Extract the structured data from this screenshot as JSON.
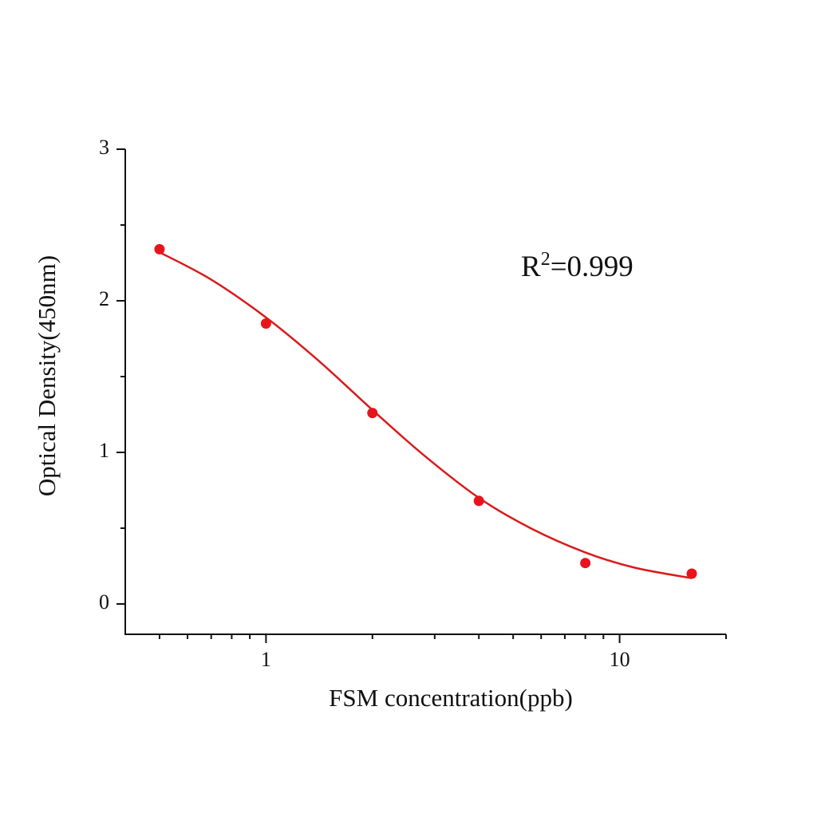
{
  "chart_data": {
    "type": "scatter",
    "x_label": "FSM concentration(ppb)",
    "y_label": "Optical Density(450nm)",
    "annotation": {
      "base": "R",
      "superscript": "2",
      "text": "=0.999"
    },
    "xscale": "log",
    "xlim": [
      0.4,
      20
    ],
    "xticks": [
      1,
      10
    ],
    "xminorticks": [
      0.5,
      0.6,
      0.7,
      0.8,
      0.9,
      2,
      3,
      4,
      5,
      6,
      7,
      8,
      9,
      20
    ],
    "ylim": [
      -0.2,
      3
    ],
    "yticks": [
      0,
      1,
      2,
      3
    ],
    "yminorticks": [
      0.5,
      1.5,
      2.5
    ],
    "series": [
      {
        "mode": "markers",
        "color": "#e8141b",
        "x": [
          0.5,
          1,
          2,
          4,
          8,
          16
        ],
        "values": [
          2.34,
          1.85,
          1.26,
          0.68,
          0.27,
          0.2
        ]
      },
      {
        "mode": "line",
        "color": "#d91a1a",
        "x": [
          0.5,
          0.7,
          1,
          1.4,
          2,
          2.8,
          4,
          5.6,
          8,
          11,
          16
        ],
        "values": [
          2.32,
          2.14,
          1.89,
          1.61,
          1.28,
          0.98,
          0.7,
          0.5,
          0.34,
          0.24,
          0.17
        ]
      }
    ]
  }
}
